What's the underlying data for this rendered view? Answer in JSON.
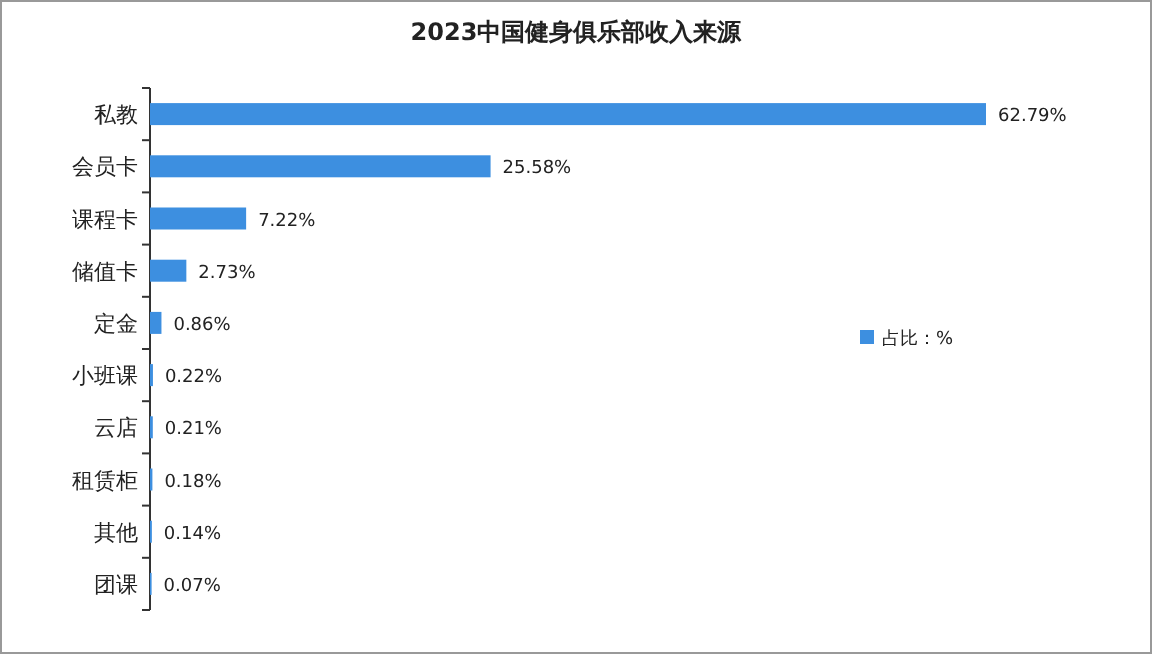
{
  "chart_data": {
    "type": "bar",
    "orientation": "horizontal",
    "title": "2023中国健身俱乐部收入来源",
    "categories": [
      "私教",
      "会员卡",
      "课程卡",
      "储值卡",
      "定金",
      "小班课",
      "云店",
      "租赁柜",
      "其他",
      "团课"
    ],
    "series": [
      {
        "name": "占比：%",
        "color": "#3d8fe0",
        "values": [
          62.79,
          25.58,
          7.22,
          2.73,
          0.86,
          0.22,
          0.21,
          0.18,
          0.14,
          0.07
        ],
        "value_labels": [
          "62.79%",
          "25.58%",
          "7.22%",
          "2.73%",
          "0.86%",
          "0.22%",
          "0.21%",
          "0.18%",
          "0.14%",
          "0.07%"
        ]
      }
    ],
    "legend": "right"
  }
}
